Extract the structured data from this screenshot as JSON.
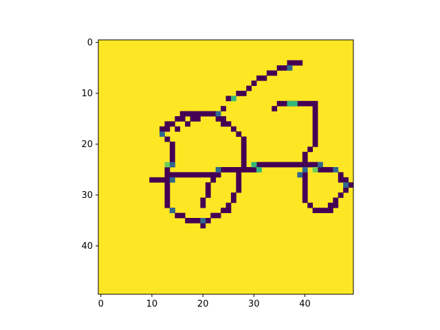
{
  "chart_data": {
    "type": "heatmap",
    "title": "",
    "xlabel": "",
    "ylabel": "",
    "grid": false,
    "image_size": [
      50,
      50
    ],
    "xlim": [
      -0.5,
      49.5
    ],
    "ylim": [
      49.5,
      -0.5
    ],
    "xticks": [
      0,
      10,
      20,
      30,
      40
    ],
    "yticks": [
      0,
      10,
      20,
      30,
      40
    ],
    "x_tick_labels": [
      "0",
      "10",
      "20",
      "30",
      "40"
    ],
    "y_tick_labels": [
      "0",
      "10",
      "20",
      "30",
      "40"
    ],
    "colormap": "viridis",
    "background_color": "#fde725",
    "stroke_color": "#440154",
    "intermediate_colors": [
      "#31688e",
      "#35b779",
      "#6ece58"
    ],
    "dark_pixels": [
      [
        37,
        4
      ],
      [
        38,
        4
      ],
      [
        39,
        4
      ],
      [
        35,
        5
      ],
      [
        36,
        5
      ],
      [
        33,
        6
      ],
      [
        34,
        6
      ],
      [
        31,
        7
      ],
      [
        32,
        7
      ],
      [
        30,
        8
      ],
      [
        29,
        9
      ],
      [
        27,
        10
      ],
      [
        28,
        10
      ],
      [
        25,
        11
      ],
      [
        35,
        12
      ],
      [
        36,
        12
      ],
      [
        37,
        12
      ],
      [
        38,
        12
      ],
      [
        39,
        12
      ],
      [
        40,
        12
      ],
      [
        41,
        12
      ],
      [
        42,
        12
      ],
      [
        24,
        13
      ],
      [
        34,
        13
      ],
      [
        42,
        13
      ],
      [
        16,
        14
      ],
      [
        17,
        14
      ],
      [
        18,
        14
      ],
      [
        19,
        14
      ],
      [
        20,
        14
      ],
      [
        21,
        14
      ],
      [
        22,
        14
      ],
      [
        42,
        14
      ],
      [
        15,
        15
      ],
      [
        16,
        15
      ],
      [
        18,
        15
      ],
      [
        19,
        15
      ],
      [
        23,
        15
      ],
      [
        24,
        15
      ],
      [
        42,
        15
      ],
      [
        13,
        16
      ],
      [
        14,
        16
      ],
      [
        17,
        16
      ],
      [
        24,
        16
      ],
      [
        25,
        16
      ],
      [
        42,
        16
      ],
      [
        12,
        17
      ],
      [
        13,
        17
      ],
      [
        15,
        17
      ],
      [
        26,
        17
      ],
      [
        42,
        17
      ],
      [
        27,
        18
      ],
      [
        42,
        18
      ],
      [
        13,
        19
      ],
      [
        28,
        19
      ],
      [
        42,
        19
      ],
      [
        14,
        20
      ],
      [
        28,
        20
      ],
      [
        42,
        20
      ],
      [
        14,
        21
      ],
      [
        28,
        21
      ],
      [
        41,
        21
      ],
      [
        14,
        22
      ],
      [
        28,
        22
      ],
      [
        40,
        22
      ],
      [
        14,
        23
      ],
      [
        28,
        23
      ],
      [
        40,
        23
      ],
      [
        14,
        24
      ],
      [
        28,
        24
      ],
      [
        31,
        24
      ],
      [
        32,
        24
      ],
      [
        33,
        24
      ],
      [
        34,
        24
      ],
      [
        35,
        24
      ],
      [
        36,
        24
      ],
      [
        37,
        24
      ],
      [
        38,
        24
      ],
      [
        39,
        24
      ],
      [
        40,
        24
      ],
      [
        41,
        24
      ],
      [
        42,
        24
      ],
      [
        13,
        25
      ],
      [
        24,
        25
      ],
      [
        25,
        25
      ],
      [
        26,
        25
      ],
      [
        27,
        25
      ],
      [
        28,
        25
      ],
      [
        29,
        25
      ],
      [
        30,
        25
      ],
      [
        43,
        25
      ],
      [
        44,
        25
      ],
      [
        45,
        25
      ],
      [
        13,
        26
      ],
      [
        14,
        26
      ],
      [
        15,
        26
      ],
      [
        16,
        26
      ],
      [
        17,
        26
      ],
      [
        18,
        26
      ],
      [
        19,
        26
      ],
      [
        20,
        26
      ],
      [
        21,
        26
      ],
      [
        22,
        26
      ],
      [
        23,
        26
      ],
      [
        27,
        26
      ],
      [
        40,
        26
      ],
      [
        47,
        26
      ],
      [
        10,
        27
      ],
      [
        11,
        27
      ],
      [
        12,
        27
      ],
      [
        13,
        27
      ],
      [
        22,
        27
      ],
      [
        27,
        27
      ],
      [
        40,
        27
      ],
      [
        47,
        27
      ],
      [
        48,
        27
      ],
      [
        13,
        28
      ],
      [
        21,
        28
      ],
      [
        27,
        28
      ],
      [
        40,
        28
      ],
      [
        49,
        28
      ],
      [
        13,
        29
      ],
      [
        21,
        29
      ],
      [
        27,
        29
      ],
      [
        40,
        29
      ],
      [
        48,
        29
      ],
      [
        13,
        30
      ],
      [
        21,
        30
      ],
      [
        26,
        30
      ],
      [
        40,
        30
      ],
      [
        47,
        30
      ],
      [
        13,
        31
      ],
      [
        20,
        31
      ],
      [
        26,
        31
      ],
      [
        40,
        31
      ],
      [
        46,
        31
      ],
      [
        13,
        32
      ],
      [
        20,
        32
      ],
      [
        25,
        32
      ],
      [
        41,
        32
      ],
      [
        45,
        32
      ],
      [
        46,
        32
      ],
      [
        14,
        33
      ],
      [
        24,
        33
      ],
      [
        25,
        33
      ],
      [
        42,
        33
      ],
      [
        43,
        33
      ],
      [
        44,
        33
      ],
      [
        45,
        33
      ],
      [
        15,
        34
      ],
      [
        16,
        34
      ],
      [
        22,
        34
      ],
      [
        23,
        34
      ],
      [
        17,
        35
      ],
      [
        18,
        35
      ],
      [
        19,
        35
      ],
      [
        21,
        35
      ],
      [
        20,
        36
      ]
    ],
    "intermediate_pixels": [
      [
        37,
        5,
        "#31688e"
      ],
      [
        26,
        11,
        "#35b779"
      ],
      [
        37,
        12,
        "#35b779"
      ],
      [
        38,
        12,
        "#35b779"
      ],
      [
        23,
        14,
        "#31688e"
      ],
      [
        12,
        18,
        "#31688e"
      ],
      [
        13,
        24,
        "#6ece58"
      ],
      [
        14,
        24,
        "#31688e"
      ],
      [
        30,
        24,
        "#35b779"
      ],
      [
        43,
        24,
        "#31688e"
      ],
      [
        23,
        25,
        "#31688e"
      ],
      [
        31,
        25,
        "#35b779"
      ],
      [
        40,
        25,
        "#31688e"
      ],
      [
        42,
        25,
        "#6ece58"
      ],
      [
        46,
        25,
        "#31688e"
      ],
      [
        39,
        26,
        "#31688e"
      ],
      [
        14,
        27,
        "#31688e"
      ],
      [
        48,
        28,
        "#31688e"
      ],
      [
        14,
        33,
        "#31688e"
      ],
      [
        20,
        35,
        "#31688e"
      ]
    ]
  }
}
